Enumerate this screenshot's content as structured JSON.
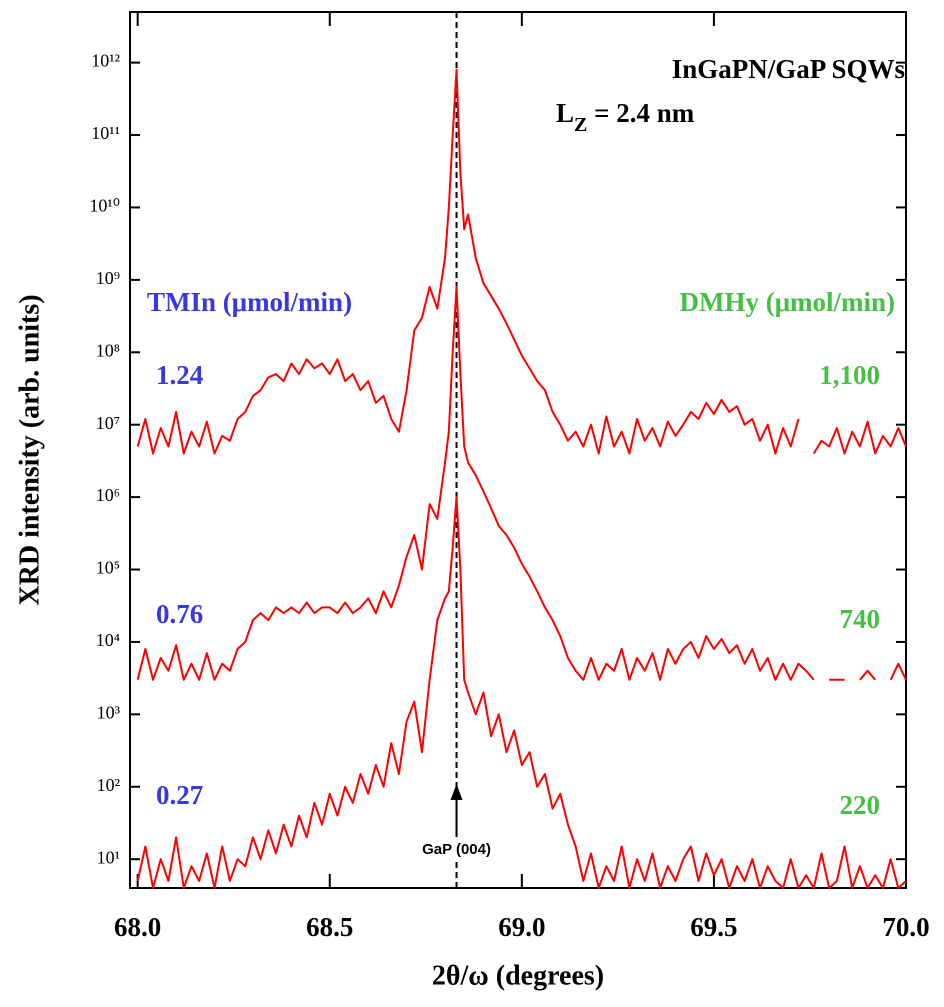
{
  "chart_data": {
    "type": "line",
    "title": "InGaPN/GaP SQWs",
    "lz_label": [
      "L",
      "Z",
      " = 2.4 nm"
    ],
    "left_title": "TMIn (μmol/min)",
    "right_title": "DMHy (μmol/min)",
    "x_label": "2θ/ω (degrees)",
    "y_label": "XRD intensity (arb. units)",
    "log_y": true,
    "xlim": [
      67.98,
      70.0
    ],
    "ylim": [
      4,
      5000000000000.0
    ],
    "xticks": [
      {
        "value": 68,
        "label": "68.0"
      },
      68.5,
      {
        "value": 69,
        "label": "69.0"
      },
      69.5,
      {
        "value": 70,
        "label": "70.0"
      }
    ],
    "yticks": [
      {
        "value": 10,
        "label": "10¹"
      },
      {
        "value": 100,
        "label": "10²"
      },
      {
        "value": 1000,
        "label": "10³"
      },
      {
        "value": 10000,
        "label": "10⁴"
      },
      {
        "value": 100000,
        "label": "10⁵"
      },
      {
        "value": 1000000,
        "label": "10⁶"
      },
      {
        "value": 10000000,
        "label": "10⁷"
      },
      {
        "value": 100000000,
        "label": "10⁸"
      },
      {
        "value": 1000000000,
        "label": "10⁹"
      },
      {
        "value": 10000000000,
        "label": "10¹⁰"
      },
      {
        "value": 100000000000,
        "label": "10¹¹"
      },
      {
        "value": 1000000000000,
        "label": "10¹²"
      }
    ],
    "reference_line": {
      "x": 68.83,
      "text": "GaP (004)"
    },
    "left_label_color": "#3838e0",
    "right_label_color": "#44c044",
    "x": [
      68.0,
      68.02,
      68.04,
      68.06,
      68.08,
      68.1,
      68.12,
      68.14,
      68.16,
      68.18,
      68.2,
      68.22,
      68.24,
      68.26,
      68.28,
      68.3,
      68.32,
      68.34,
      68.36,
      68.38,
      68.4,
      68.42,
      68.44,
      68.46,
      68.48,
      68.5,
      68.52,
      68.54,
      68.56,
      68.58,
      68.6,
      68.62,
      68.64,
      68.66,
      68.68,
      68.7,
      68.72,
      68.74,
      68.76,
      68.78,
      68.8,
      68.81,
      68.82,
      68.83,
      68.84,
      68.85,
      68.86,
      68.88,
      68.9,
      68.92,
      68.94,
      68.96,
      68.98,
      69.0,
      69.02,
      69.04,
      69.06,
      69.08,
      69.1,
      69.12,
      69.14,
      69.16,
      69.18,
      69.2,
      69.22,
      69.24,
      69.26,
      69.28,
      69.3,
      69.32,
      69.34,
      69.36,
      69.38,
      69.4,
      69.42,
      69.44,
      69.46,
      69.48,
      69.5,
      69.52,
      69.54,
      69.56,
      69.58,
      69.6,
      69.62,
      69.64,
      69.66,
      69.68,
      69.7,
      69.72,
      69.74,
      69.76,
      69.78,
      69.8,
      69.82,
      69.84,
      69.86,
      69.88,
      69.9,
      69.92,
      69.94,
      69.96,
      69.98,
      70.0
    ],
    "series": [
      {
        "name": "1.24",
        "right_label": "1,100",
        "color": "#ff0000",
        "values": [
          5000000.0,
          12000000.0,
          4000000.0,
          9000000.0,
          5000000.0,
          15000000.0,
          4000000.0,
          8000000.0,
          5000000.0,
          11000000.0,
          4000000.0,
          7000000.0,
          6000000.0,
          12000000.0,
          15000000.0,
          25000000.0,
          30000000.0,
          45000000.0,
          50000000.0,
          40000000.0,
          70000000.0,
          50000000.0,
          80000000.0,
          60000000.0,
          70000000.0,
          50000000.0,
          80000000.0,
          40000000.0,
          50000000.0,
          30000000.0,
          40000000.0,
          20000000.0,
          25000000.0,
          12000000.0,
          8000000.0,
          30000000.0,
          200000000.0,
          300000000.0,
          800000000.0,
          400000000.0,
          2000000000.0,
          10000000000.0,
          100000000000.0,
          800000000000.0,
          30000000000.0,
          5000000000.0,
          8000000000.0,
          2000000000.0,
          900000000.0,
          600000000.0,
          400000000.0,
          250000000.0,
          150000000.0,
          90000000.0,
          60000000.0,
          40000000.0,
          30000000.0,
          15000000.0,
          10000000.0,
          6000000.0,
          8000000.0,
          5000000.0,
          10000000.0,
          4000000.0,
          13000000.0,
          5000000.0,
          8000000.0,
          4000000.0,
          12000000.0,
          6000000.0,
          9000000.0,
          5000000.0,
          11000000.0,
          7000000.0,
          10000000.0,
          15000000.0,
          12000000.0,
          20000000.0,
          14000000.0,
          22000000.0,
          15000000.0,
          18000000.0,
          10000000.0,
          12000000.0,
          6000000.0,
          10000000.0,
          4000000.0,
          9000000.0,
          5000000.0,
          12000000.0,
          null,
          4000000.0,
          6000000.0,
          5000000.0,
          9000000.0,
          4000000.0,
          8000000.0,
          5000000.0,
          11000000.0,
          4000000.0,
          7000000.0,
          5000000.0,
          9000000.0,
          5000000.0
        ]
      },
      {
        "name": "0.76",
        "right_label": "740",
        "color": "#ff0000",
        "values": [
          3000.0,
          8000.0,
          3000.0,
          6000.0,
          4000.0,
          9000.0,
          3000.0,
          5000.0,
          3000.0,
          7000.0,
          3000.0,
          5000.0,
          4000.0,
          8000.0,
          10000.0,
          20000.0,
          25000.0,
          20000.0,
          30000.0,
          25000.0,
          30000.0,
          25000.0,
          35000.0,
          25000.0,
          30000.0,
          30000.0,
          25000.0,
          35000.0,
          25000.0,
          30000.0,
          40000.0,
          25000.0,
          50000.0,
          30000.0,
          60000.0,
          150000.0,
          300000.0,
          100000.0,
          800000.0,
          500000.0,
          3000000.0,
          8000000.0,
          100000000.0,
          800000000.0,
          50000000.0,
          5000000.0,
          3000000.0,
          2000000.0,
          1200000.0,
          700000.0,
          400000.0,
          300000.0,
          200000.0,
          120000.0,
          80000.0,
          50000.0,
          30000.0,
          20000.0,
          12000.0,
          6000.0,
          4000.0,
          3000.0,
          6000.0,
          3000.0,
          5000.0,
          4000.0,
          8000.0,
          3000.0,
          6000.0,
          4000.0,
          7000.0,
          3000.0,
          8000.0,
          5000.0,
          8000.0,
          10000.0,
          6000.0,
          12000.0,
          8000.0,
          11000.0,
          7000.0,
          9000.0,
          5000.0,
          8000.0,
          4000.0,
          6000.0,
          3000.0,
          5000.0,
          3000.0,
          5000.0,
          4000.0,
          3000.0,
          null,
          3000.0,
          3000.0,
          3000.0,
          null,
          3000.0,
          4000.0,
          3000.0,
          null,
          3000.0,
          5000.0,
          3000.0
        ]
      },
      {
        "name": "0.27",
        "right_label": "220",
        "color": "#ff0000",
        "values": [
          5,
          15,
          4,
          10,
          5,
          20,
          4,
          8,
          5,
          12,
          4,
          15,
          5,
          10,
          8,
          20,
          10,
          25,
          12,
          30,
          15,
          40,
          20,
          60,
          30,
          80,
          40,
          100,
          60,
          150,
          80,
          200,
          100,
          400,
          150,
          800,
          1500,
          300,
          3000,
          20000.0,
          40000.0,
          50000.0,
          200000.0,
          1000000.0,
          100000.0,
          3000.0,
          2000.0,
          1000.0,
          2000.0,
          500,
          1000,
          300,
          600,
          200,
          300,
          100,
          150,
          50,
          80,
          30,
          15,
          5,
          12,
          4,
          8,
          5,
          15,
          4,
          10,
          5,
          12,
          4,
          8,
          5,
          10,
          15,
          5,
          12,
          6,
          10,
          4,
          8,
          5,
          10,
          4,
          8,
          5,
          4,
          10,
          4,
          6,
          4,
          12,
          4,
          5,
          15,
          4,
          8,
          4,
          6,
          4,
          10,
          4,
          5
        ]
      }
    ]
  }
}
